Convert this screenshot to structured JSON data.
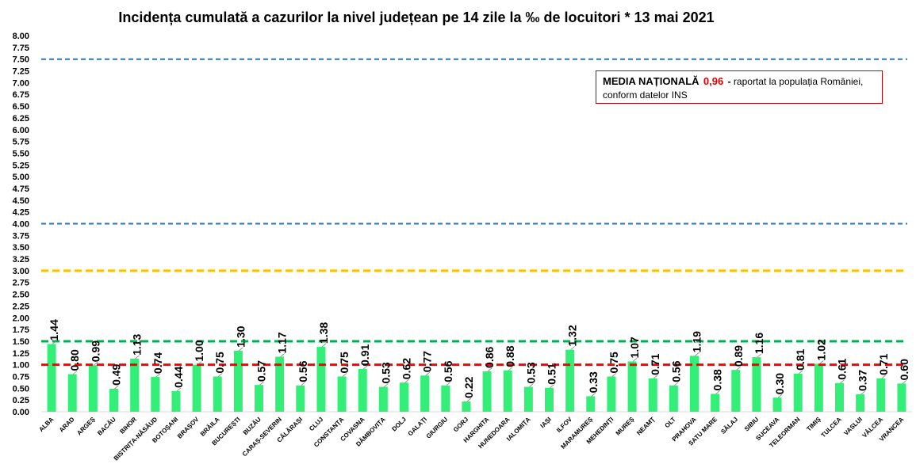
{
  "title": "Incidența cumulată a cazurilor la nivel județean pe 14 zile la ‰ de locuitori *  13 mai 2021",
  "note": {
    "label": "MEDIA NAȚIONALĂ",
    "value": "0,96",
    "dash": "-",
    "text_line1": "raportat la populația României,",
    "text_line2": "conform datelor INS"
  },
  "chart_data": {
    "type": "bar",
    "title": "Incidența cumulată a cazurilor la nivel județean pe 14 zile la ‰ de locuitori *  13 mai 2021",
    "xlabel": "",
    "ylabel": "",
    "ylim": [
      0,
      8
    ],
    "yticks": [
      "0.00",
      "0.25",
      "0.50",
      "0.75",
      "1.00",
      "1.25",
      "1.50",
      "1.75",
      "2.00",
      "2.25",
      "2.50",
      "2.75",
      "3.00",
      "3.25",
      "3.50",
      "3.75",
      "4.00",
      "4.25",
      "4.50",
      "4.75",
      "5.00",
      "5.25",
      "5.50",
      "5.75",
      "6.00",
      "6.25",
      "6.50",
      "6.75",
      "7.00",
      "7.25",
      "7.50",
      "7.75",
      "8.00"
    ],
    "grid": false,
    "bar_color": "#33ee77",
    "categories": [
      "ALBA",
      "ARAD",
      "ARGEȘ",
      "BACĂU",
      "BIHOR",
      "BISTRIȚA-NĂSĂUD",
      "BOTOȘANI",
      "BRAȘOV",
      "BRĂILA",
      "BUCUREȘTI",
      "BUZĂU",
      "CARAȘ-SEVERIN",
      "CĂLĂRAȘI",
      "CLUJ",
      "CONSTANȚA",
      "COVASNA",
      "DÂMBOVIȚA",
      "DOLJ",
      "GALAȚI",
      "GIURGIU",
      "GORJ",
      "HARGHITA",
      "HUNEDOARA",
      "IALOMIȚA",
      "IAȘI",
      "ILFOV",
      "MARAMUREȘ",
      "MEHEDINȚI",
      "MUREȘ",
      "NEAMȚ",
      "OLT",
      "PRAHOVA",
      "SATU MARE",
      "SĂLAJ",
      "SIBIU",
      "SUCEAVA",
      "TELEORMAN",
      "TIMIȘ",
      "TULCEA",
      "VASLUI",
      "VÂLCEA",
      "VRANCEA"
    ],
    "values": [
      1.44,
      0.8,
      0.99,
      0.49,
      1.13,
      0.74,
      0.44,
      1.0,
      0.75,
      1.3,
      0.57,
      1.17,
      0.56,
      1.38,
      0.75,
      0.91,
      0.53,
      0.62,
      0.77,
      0.56,
      0.22,
      0.86,
      0.88,
      0.53,
      0.51,
      1.32,
      0.33,
      0.75,
      1.07,
      0.71,
      0.56,
      1.19,
      0.38,
      0.89,
      1.16,
      0.3,
      0.81,
      1.02,
      0.61,
      0.37,
      0.71,
      0.6
    ],
    "labels": [
      "1.44",
      "0.80",
      "0.99",
      "0.49",
      "1.13",
      "0.74",
      "0.44",
      "1.00",
      "0.75",
      "1.30",
      "0.57",
      "1.17",
      "0.56",
      "1.38",
      "0.75",
      "0.91",
      "0.53",
      "0.62",
      "0.77",
      "0.56",
      "0.22",
      "0.86",
      "0.88",
      "0.53",
      "0.51",
      "1.32",
      "0.33",
      "0.75",
      "1.07",
      "0.71",
      "0.56",
      "1.19",
      "0.38",
      "0.89",
      "1.16",
      "0.30",
      "0.81",
      "1.02",
      "0.61",
      "0.37",
      "0.71",
      "0.60"
    ],
    "reference_lines": [
      {
        "value": 7.5,
        "color": "#2e75b6"
      },
      {
        "value": 4.0,
        "color": "#2e75b6"
      },
      {
        "value": 3.0,
        "color": "#ffc000"
      },
      {
        "value": 1.5,
        "color": "#00b050"
      },
      {
        "value": 1.0,
        "color": "#ff0000"
      }
    ]
  }
}
